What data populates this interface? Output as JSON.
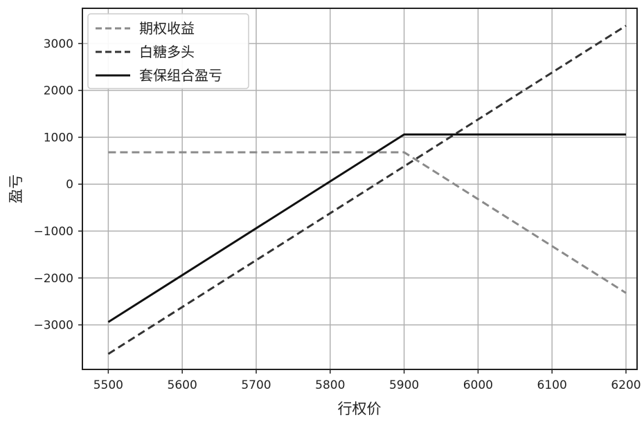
{
  "chart_data": {
    "type": "line",
    "xlabel": "行权价",
    "ylabel": "盈亏",
    "xlim": [
      5465,
      6215
    ],
    "ylim": [
      -3950,
      3750
    ],
    "xticks": [
      5500,
      5600,
      5700,
      5800,
      5900,
      6000,
      6100,
      6200
    ],
    "yticks": [
      -3000,
      -2000,
      -1000,
      0,
      1000,
      2000,
      3000
    ],
    "xtick_labels": [
      "5500",
      "5600",
      "5700",
      "5800",
      "5900",
      "6000",
      "6100",
      "6200"
    ],
    "ytick_labels": [
      "−3000",
      "−2000",
      "−1000",
      "0",
      "1000",
      "2000",
      "3000"
    ],
    "grid": true,
    "legend_position": "top-left",
    "series": [
      {
        "name": "期权收益",
        "style": "dashed",
        "color": "#8a8a8a",
        "x": [
          5500,
          5900,
          6200
        ],
        "y": [
          680,
          680,
          -2320
        ]
      },
      {
        "name": "白糖多头",
        "style": "dashed",
        "color": "#333333",
        "x": [
          5500,
          6200
        ],
        "y": [
          -3620,
          3380
        ]
      },
      {
        "name": "套保组合盈亏",
        "style": "solid",
        "color": "#111111",
        "x": [
          5500,
          5900,
          6200
        ],
        "y": [
          -2940,
          1060,
          1060
        ]
      }
    ]
  }
}
